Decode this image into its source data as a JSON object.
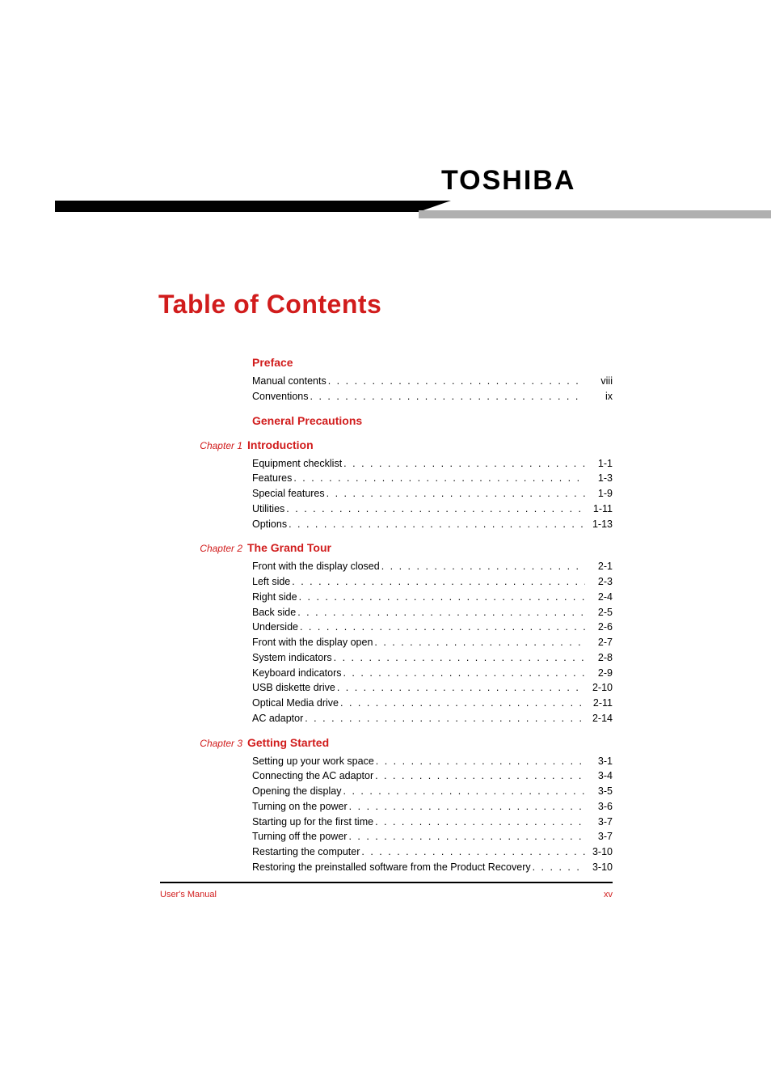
{
  "colors": {
    "accent": "#d11c1c",
    "banner_black": "#000000",
    "banner_gray": "#b0b0b0",
    "text": "#000000",
    "background": "#ffffff"
  },
  "typography": {
    "brand_fontsize": 34,
    "title_fontsize": 32,
    "section_title_fontsize": 14,
    "entry_fontsize": 12.5,
    "chapter_label_fontsize": 12,
    "footer_fontsize": 11
  },
  "brand": "TOSHIBA",
  "title": "Table of Contents",
  "sections": [
    {
      "chapter": "",
      "title": "Preface",
      "entries": [
        {
          "label": "Manual contents",
          "page": "viii"
        },
        {
          "label": "Conventions",
          "page": "ix"
        }
      ]
    },
    {
      "chapter": "",
      "title": "General Precautions",
      "entries": []
    },
    {
      "chapter": "Chapter 1",
      "title": "Introduction",
      "entries": [
        {
          "label": "Equipment checklist",
          "page": "1-1"
        },
        {
          "label": "Features",
          "page": "1-3"
        },
        {
          "label": "Special features",
          "page": "1-9"
        },
        {
          "label": "Utilities",
          "page": "1-11"
        },
        {
          "label": "Options",
          "page": "1-13"
        }
      ]
    },
    {
      "chapter": "Chapter 2",
      "title": "The Grand Tour",
      "entries": [
        {
          "label": "Front with the display closed",
          "page": "2-1"
        },
        {
          "label": "Left side",
          "page": "2-3"
        },
        {
          "label": "Right side",
          "page": "2-4"
        },
        {
          "label": "Back side",
          "page": "2-5"
        },
        {
          "label": "Underside",
          "page": "2-6"
        },
        {
          "label": "Front with the display open",
          "page": "2-7"
        },
        {
          "label": "System indicators",
          "page": "2-8"
        },
        {
          "label": "Keyboard indicators",
          "page": "2-9"
        },
        {
          "label": "USB diskette drive",
          "page": "2-10"
        },
        {
          "label": "Optical Media drive",
          "page": "2-11"
        },
        {
          "label": "AC adaptor",
          "page": "2-14"
        }
      ]
    },
    {
      "chapter": "Chapter 3",
      "title": "Getting Started",
      "entries": [
        {
          "label": "Setting up your work space",
          "page": "3-1"
        },
        {
          "label": "Connecting the AC adaptor",
          "page": "3-4"
        },
        {
          "label": "Opening the display",
          "page": "3-5"
        },
        {
          "label": "Turning on the power",
          "page": "3-6"
        },
        {
          "label": "Starting up for the first time",
          "page": "3-7"
        },
        {
          "label": "Turning off the power",
          "page": "3-7"
        },
        {
          "label": "Restarting the computer",
          "page": "3-10"
        },
        {
          "label": "Restoring the preinstalled software from the Product Recovery",
          "page": "3-10"
        }
      ]
    }
  ],
  "footer": {
    "left": "User's Manual",
    "right": "xv"
  }
}
